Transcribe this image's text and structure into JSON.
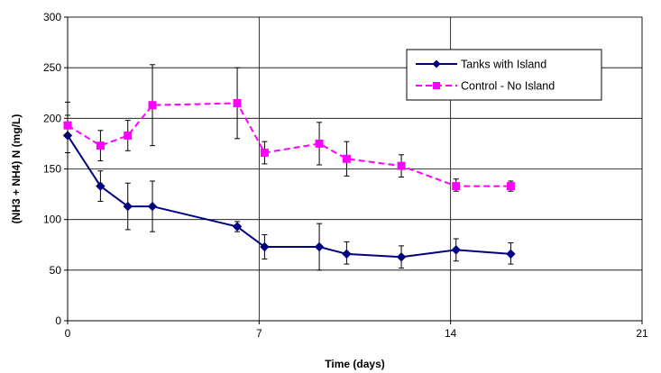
{
  "chart_data": {
    "type": "line",
    "title": "",
    "xlabel": "Time (days)",
    "ylabel": "(NH3 + NH4)  N  (mg/L)",
    "xlim": [
      0,
      21
    ],
    "ylim": [
      0,
      300
    ],
    "xticks": [
      0,
      7,
      14,
      21
    ],
    "yticks": [
      0,
      50,
      100,
      150,
      200,
      250,
      300
    ],
    "grid": true,
    "legend_position": "top-right",
    "series": [
      {
        "name": "Tanks with Island",
        "color": "#000080",
        "line_style": "solid",
        "marker": "diamond",
        "x": [
          0,
          1.2,
          2.2,
          3.1,
          6.2,
          7.2,
          9.2,
          10.2,
          12.2,
          14.2,
          16.2
        ],
        "y": [
          183,
          133,
          113,
          113,
          93,
          73,
          73,
          66,
          63,
          70,
          66
        ],
        "err_low": [
          166,
          118,
          90,
          88,
          88,
          61,
          50,
          56,
          52,
          59,
          56
        ],
        "err_high": [
          216,
          148,
          136,
          138,
          98,
          85,
          96,
          78,
          74,
          81,
          77
        ]
      },
      {
        "name": "Control - No Island",
        "color": "#FF00FF",
        "line_style": "dashed",
        "marker": "square",
        "x": [
          0,
          1.2,
          2.2,
          3.1,
          6.2,
          7.2,
          9.2,
          10.2,
          12.2,
          14.2,
          16.2
        ],
        "y": [
          193,
          173,
          183,
          213,
          215,
          166,
          175,
          160,
          153,
          133,
          133
        ],
        "err_low": [
          183,
          158,
          168,
          173,
          180,
          155,
          154,
          143,
          142,
          128,
          128
        ],
        "err_high": [
          203,
          188,
          198,
          253,
          250,
          177,
          196,
          177,
          164,
          140,
          138
        ]
      }
    ]
  }
}
